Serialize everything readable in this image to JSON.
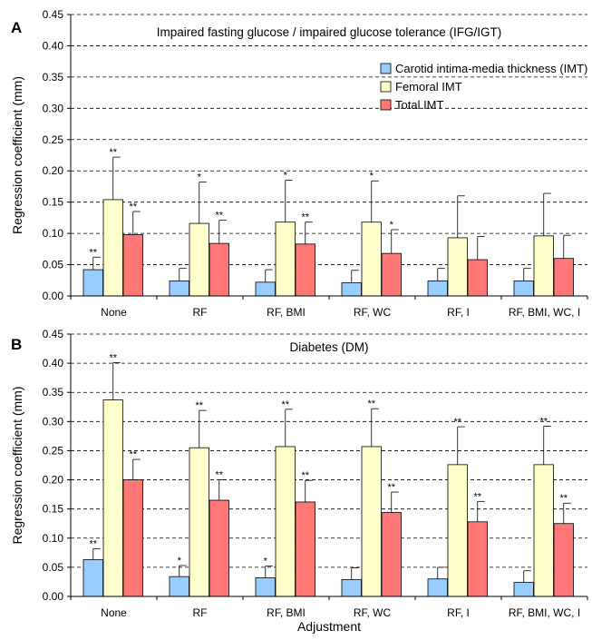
{
  "chart_data": [
    {
      "panel_label": "A",
      "type": "bar",
      "title": "Impaired fasting glucose / impaired glucose tolerance (IFG/IGT)",
      "ylabel": "Regression coefficient (mm)",
      "xlabel": "",
      "ylim": [
        0,
        0.45
      ],
      "yticks": [
        "0.00",
        "0.05",
        "0.10",
        "0.15",
        "0.20",
        "0.25",
        "0.30",
        "0.35",
        "0.40",
        "0.45"
      ],
      "grid": true,
      "legend_position": "top-right",
      "categories": [
        "None",
        "RF",
        "RF, BMI",
        "RF, WC",
        "RF, I",
        "RF, BMI, WC, I"
      ],
      "series": [
        {
          "name": "Carotid intima-media thickness (IMT)",
          "color": "#99ccff",
          "values": [
            0.042,
            0.024,
            0.022,
            0.021,
            0.024,
            0.024
          ],
          "error": [
            0.02,
            0.02,
            0.02,
            0.02,
            0.02,
            0.02
          ],
          "sig": [
            "**",
            "",
            "",
            "",
            "",
            ""
          ]
        },
        {
          "name": "Femoral IMT",
          "color": "#ffffcc",
          "values": [
            0.154,
            0.116,
            0.118,
            0.118,
            0.093,
            0.096
          ],
          "error": [
            0.068,
            0.066,
            0.067,
            0.066,
            0.067,
            0.068
          ],
          "sig": [
            "**",
            "*",
            "*",
            "*",
            "",
            ""
          ]
        },
        {
          "name": "Total IMT",
          "color": "#ff7777",
          "values": [
            0.098,
            0.084,
            0.083,
            0.068,
            0.058,
            0.06
          ],
          "error": [
            0.037,
            0.037,
            0.035,
            0.038,
            0.037,
            0.037
          ],
          "sig": [
            "**",
            "**",
            "**",
            "*",
            "",
            ""
          ]
        }
      ]
    },
    {
      "panel_label": "B",
      "type": "bar",
      "title": "Diabetes (DM)",
      "ylabel": "Regression coefficient (mm)",
      "xlabel": "Adjustment",
      "ylim": [
        0,
        0.45
      ],
      "yticks": [
        "0.00",
        "0.05",
        "0.10",
        "0.15",
        "0.20",
        "0.25",
        "0.30",
        "0.35",
        "0.40",
        "0.45"
      ],
      "grid": true,
      "categories": [
        "None",
        "RF",
        "RF, BMI",
        "RF, WC",
        "RF, I",
        "RF, BMI, WC, I"
      ],
      "series": [
        {
          "name": "Carotid intima-media thickness (IMT)",
          "color": "#99ccff",
          "values": [
            0.063,
            0.034,
            0.032,
            0.029,
            0.03,
            0.024
          ],
          "error": [
            0.019,
            0.019,
            0.02,
            0.02,
            0.02,
            0.02
          ],
          "sig": [
            "**",
            "*",
            "*",
            "",
            "",
            ""
          ]
        },
        {
          "name": "Femoral IMT",
          "color": "#ffffcc",
          "values": [
            0.337,
            0.255,
            0.257,
            0.257,
            0.226,
            0.226
          ],
          "error": [
            0.064,
            0.064,
            0.064,
            0.065,
            0.065,
            0.066
          ],
          "sig": [
            "**",
            "**",
            "**",
            "**",
            "**",
            "**"
          ]
        },
        {
          "name": "Total IMT",
          "color": "#ff7777",
          "values": [
            0.2,
            0.165,
            0.162,
            0.144,
            0.128,
            0.125
          ],
          "error": [
            0.035,
            0.035,
            0.037,
            0.035,
            0.035,
            0.035
          ],
          "sig": [
            "**",
            "**",
            "**",
            "**",
            "**",
            "**"
          ]
        }
      ]
    }
  ]
}
